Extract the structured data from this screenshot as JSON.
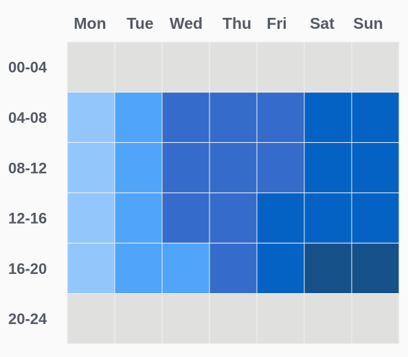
{
  "chart_data": {
    "type": "heatmap",
    "title": "",
    "xlabel": "",
    "ylabel": "",
    "x": [
      "Mon",
      "Tue",
      "Wed",
      "Thu",
      "Fri",
      "Sat",
      "Sun"
    ],
    "y": [
      "00-04",
      "04-08",
      "08-12",
      "12-16",
      "16-20",
      "20-24"
    ],
    "levels": [
      [
        0,
        0,
        0,
        0,
        0,
        0,
        0
      ],
      [
        1,
        2,
        3,
        3,
        3,
        4,
        4
      ],
      [
        1,
        2,
        3,
        3,
        3,
        4,
        4
      ],
      [
        1,
        2,
        3,
        3,
        4,
        4,
        4
      ],
      [
        1,
        2,
        2,
        3,
        4,
        5,
        5
      ]
    ],
    "levels_note_rows": "rows 00-04 through 16-20; row 20-24 is empty",
    "empty_row": [
      0,
      0,
      0,
      0,
      0,
      0,
      0
    ],
    "colors": [
      "#e0e0de",
      "#93c6fb",
      "#50a4fa",
      "#356ccb",
      "#0362c4",
      "#165089"
    ],
    "grid_line_color": "#f2f2f2",
    "label_color": "#555a63",
    "background": "#fafafa",
    "legend": false,
    "grid": true
  }
}
